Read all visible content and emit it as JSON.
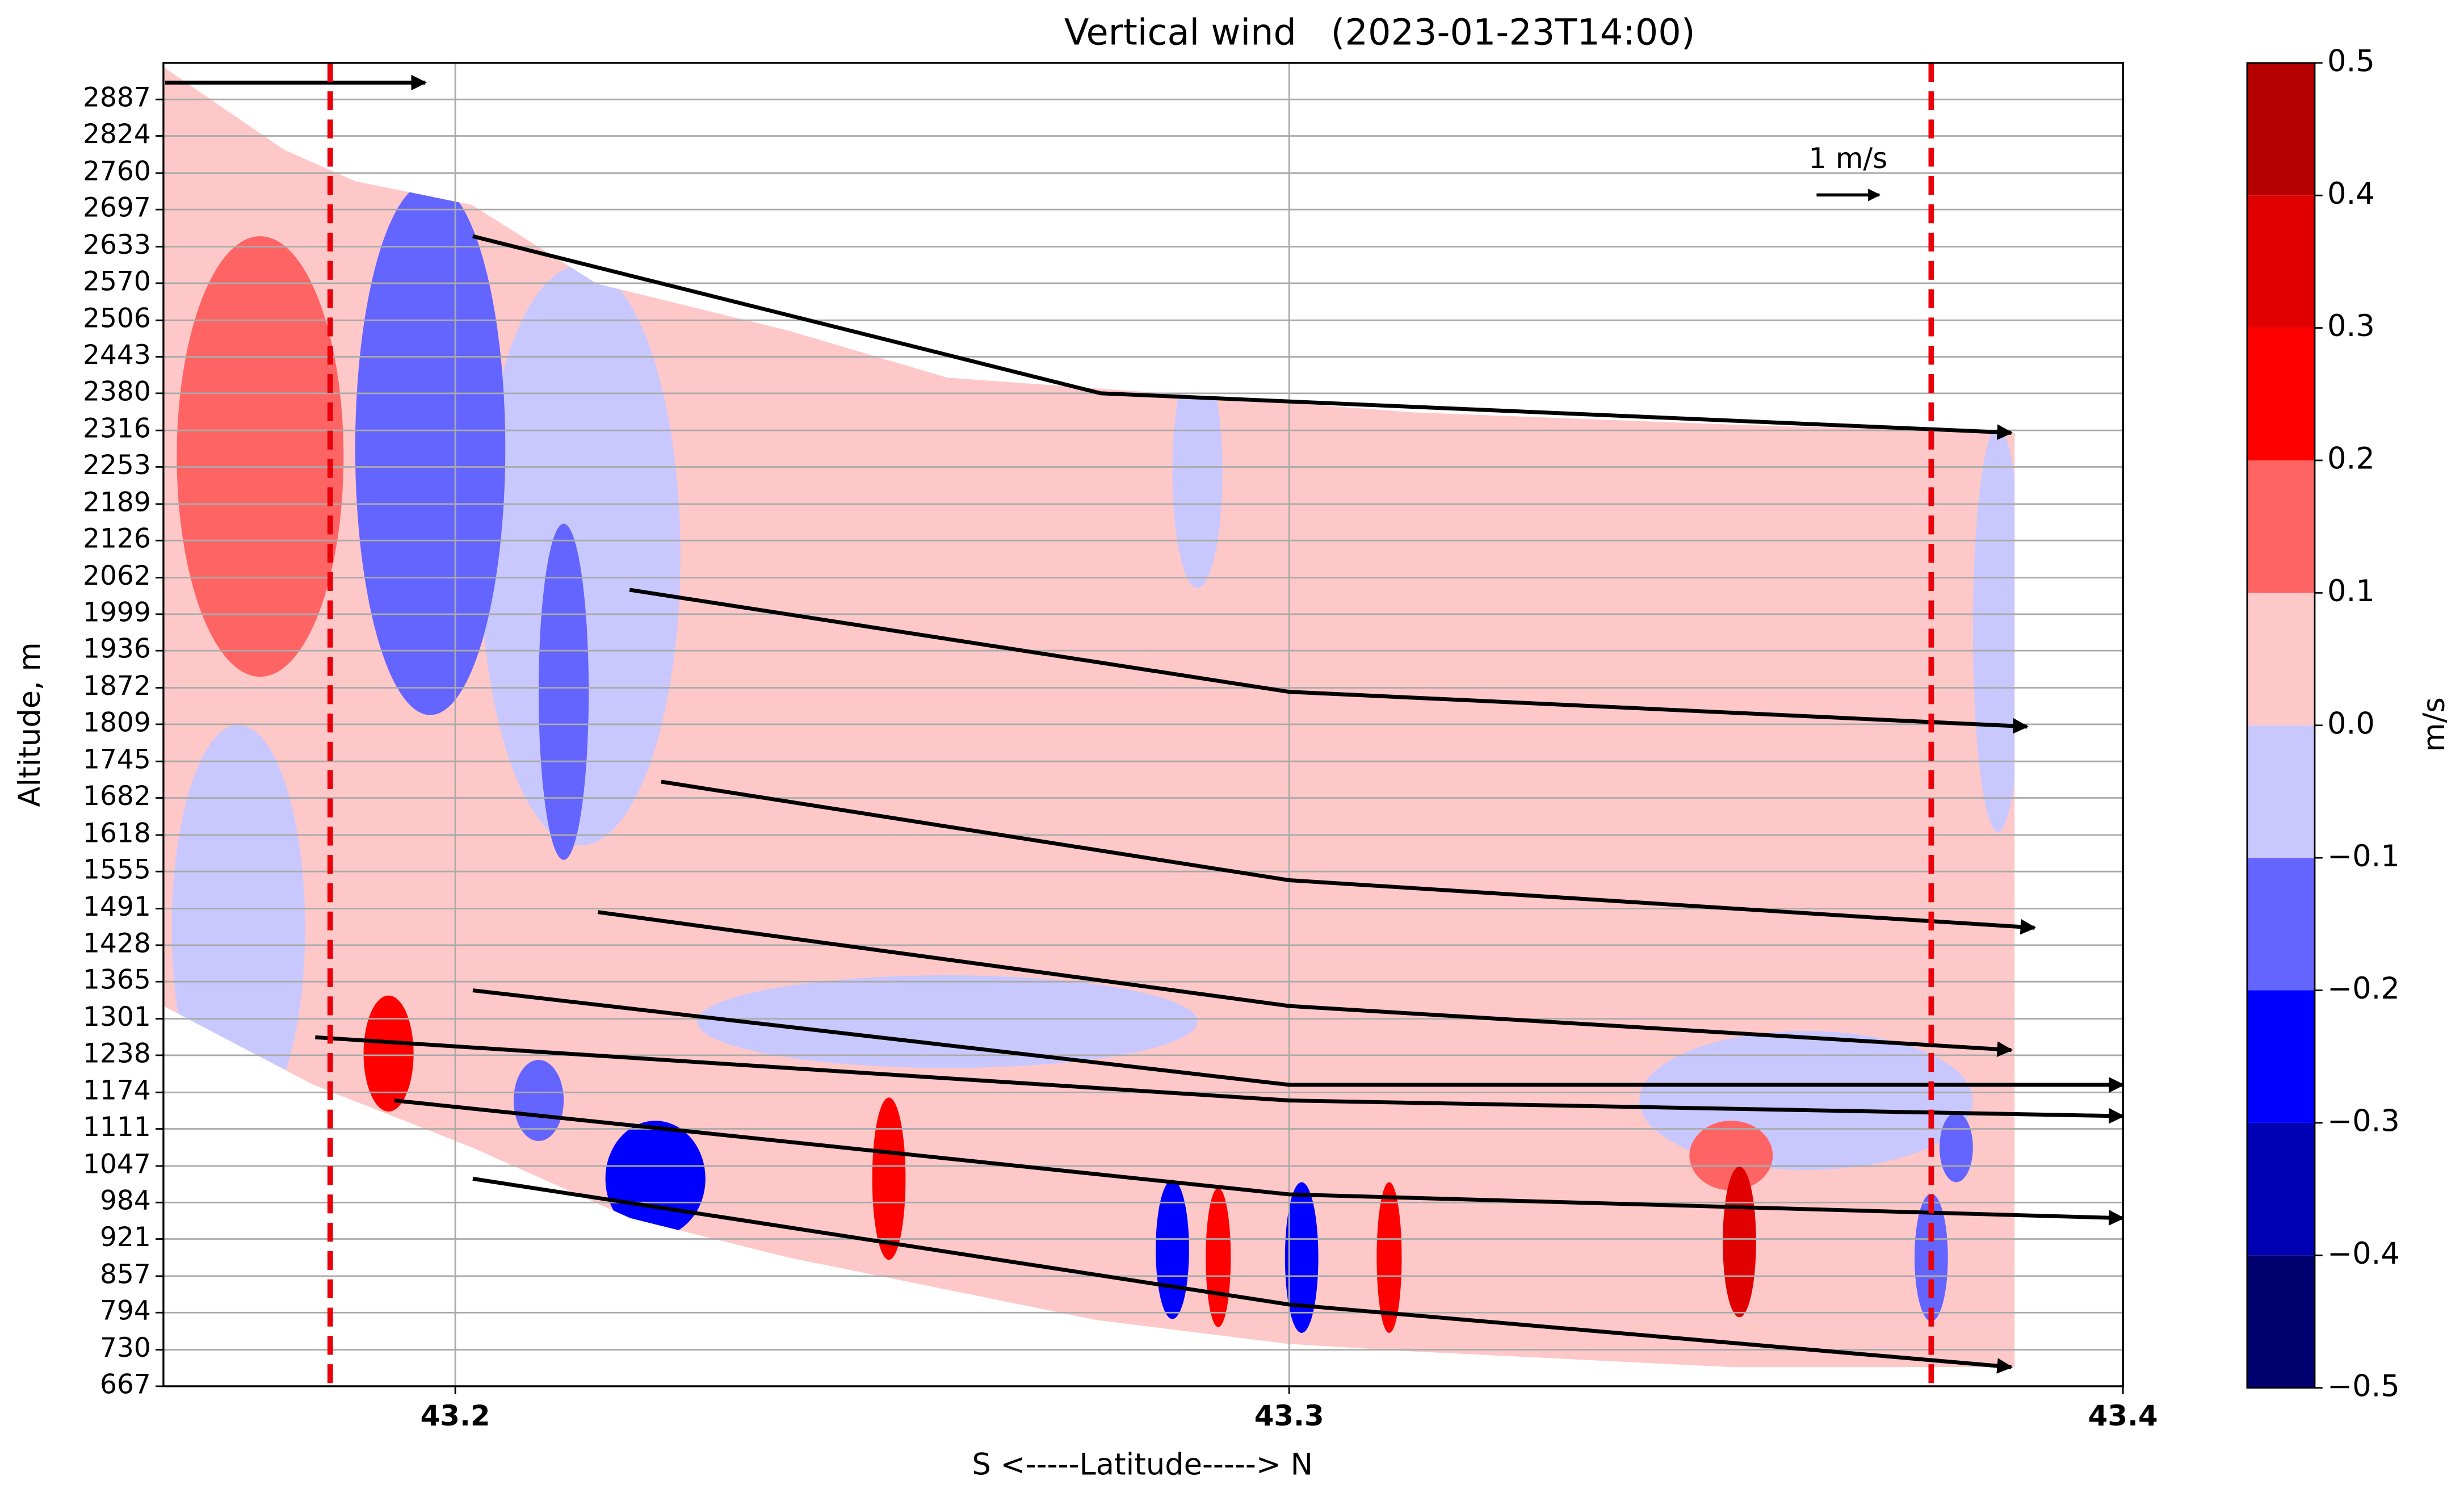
{
  "chart_data": {
    "type": "contour",
    "title": "Vertical wind   (2023-01-23T14:00)",
    "xlabel": "S <-----Latitude-----> N",
    "ylabel": "Altitude, m",
    "xlim": [
      43.165,
      43.4
    ],
    "xticks": [
      43.2,
      43.3,
      43.4
    ],
    "ylim": [
      667,
      2950
    ],
    "yticks": [
      667,
      730,
      794,
      857,
      921,
      984,
      1047,
      1111,
      1174,
      1238,
      1301,
      1365,
      1428,
      1491,
      1555,
      1618,
      1682,
      1745,
      1809,
      1872,
      1936,
      1999,
      2062,
      2126,
      2189,
      2253,
      2316,
      2380,
      2443,
      2506,
      2570,
      2633,
      2697,
      2760,
      2824,
      2887
    ],
    "grid": true,
    "domain": {
      "x": [
        43.165,
        43.1795,
        43.188,
        43.202,
        43.217,
        43.24,
        43.259,
        43.285,
        43.315,
        43.353,
        43.387,
        43.387,
        43.353,
        43.315,
        43.3,
        43.277,
        43.24,
        43.221,
        43.202,
        43.183,
        43.165
      ],
      "y": [
        2943,
        2800,
        2746,
        2705,
        2569,
        2488,
        2407,
        2380,
        2347,
        2326,
        2312,
        700,
        700,
        727,
        740,
        781,
        889,
        957,
        1079,
        1187,
        1323
      ],
      "value": 0.05
    },
    "regions": [
      {
        "lat": 43.174,
        "alt": 1458,
        "dlat": 0.008,
        "dalt": 350,
        "value": -0.05
      },
      {
        "lat": 43.259,
        "alt": 1296,
        "dlat": 0.03,
        "dalt": 80,
        "value": -0.05
      },
      {
        "lat": 43.362,
        "alt": 1160,
        "dlat": 0.02,
        "dalt": 120,
        "value": -0.05
      },
      {
        "lat": 43.289,
        "alt": 2244,
        "dlat": 0.003,
        "dalt": 200,
        "value": -0.05
      },
      {
        "lat": 43.385,
        "alt": 1973,
        "dlat": 0.003,
        "dalt": 350,
        "value": -0.05
      },
      {
        "lat": 43.215,
        "alt": 2100,
        "dlat": 0.012,
        "dalt": 500,
        "value": -0.05
      },
      {
        "lat": 43.1766,
        "alt": 2271,
        "dlat": 0.01,
        "dalt": 380,
        "value": 0.15
      },
      {
        "lat": 43.197,
        "alt": 2285,
        "dlat": 0.009,
        "dalt": 460,
        "value": -0.15
      },
      {
        "lat": 43.213,
        "alt": 1865,
        "dlat": 0.003,
        "dalt": 290,
        "value": -0.15
      },
      {
        "lat": 43.192,
        "alt": 1241,
        "dlat": 0.003,
        "dalt": 100,
        "value": 0.25
      },
      {
        "lat": 43.21,
        "alt": 1160,
        "dlat": 0.003,
        "dalt": 70,
        "value": -0.15
      },
      {
        "lat": 43.224,
        "alt": 1025,
        "dlat": 0.006,
        "dalt": 100,
        "value": -0.25
      },
      {
        "lat": 43.252,
        "alt": 1025,
        "dlat": 0.002,
        "dalt": 140,
        "value": 0.25
      },
      {
        "lat": 43.286,
        "alt": 903,
        "dlat": 0.002,
        "dalt": 120,
        "value": -0.25
      },
      {
        "lat": 43.2915,
        "alt": 889,
        "dlat": 0.0015,
        "dalt": 120,
        "value": 0.25
      },
      {
        "lat": 43.3015,
        "alt": 889,
        "dlat": 0.002,
        "dalt": 130,
        "value": -0.25
      },
      {
        "lat": 43.312,
        "alt": 889,
        "dlat": 0.0015,
        "dalt": 130,
        "value": 0.25
      },
      {
        "lat": 43.353,
        "alt": 1065,
        "dlat": 0.005,
        "dalt": 60,
        "value": 0.15
      },
      {
        "lat": 43.354,
        "alt": 916,
        "dlat": 0.002,
        "dalt": 130,
        "value": 0.35
      },
      {
        "lat": 43.377,
        "alt": 889,
        "dlat": 0.002,
        "dalt": 110,
        "value": -0.15
      },
      {
        "lat": 43.38,
        "alt": 1079,
        "dlat": 0.002,
        "dalt": 60,
        "value": -0.15
      }
    ],
    "streaks": [
      {
        "x": [
          43.1652,
          43.1964
        ],
        "y": [
          2916,
          2916
        ]
      },
      {
        "x": [
          43.2021,
          43.2774,
          43.3866
        ],
        "y": [
          2651,
          2380,
          2312
        ]
      },
      {
        "x": [
          43.2209,
          43.3,
          43.3885
        ],
        "y": [
          2041,
          1865,
          1805
        ]
      },
      {
        "x": [
          43.2247,
          43.3,
          43.3894
        ],
        "y": [
          1710,
          1540,
          1458
        ]
      },
      {
        "x": [
          43.2171,
          43.3,
          43.3866
        ],
        "y": [
          1485,
          1323,
          1247
        ]
      },
      {
        "x": [
          43.2021,
          43.3,
          43.4
        ],
        "y": [
          1350,
          1187,
          1187
        ]
      },
      {
        "x": [
          43.1832,
          43.3,
          43.4
        ],
        "y": [
          1269,
          1160,
          1133
        ]
      },
      {
        "x": [
          43.1927,
          43.3,
          43.4
        ],
        "y": [
          1160,
          998,
          957
        ]
      },
      {
        "x": [
          43.2021,
          43.3,
          43.3866
        ],
        "y": [
          1025,
          808,
          700
        ]
      }
    ],
    "reference_lines": {
      "x": [
        43.185,
        43.377
      ],
      "color": "#e8000b"
    },
    "scale_arrow": {
      "label": "1 m/s",
      "value": 1
    },
    "colorbar": {
      "label": "m/s",
      "levels": [
        -0.5,
        -0.4,
        -0.3,
        -0.2,
        -0.1,
        0,
        0.1,
        0.2,
        0.3,
        0.4,
        0.5
      ],
      "colors": [
        "#00006e",
        "#0000b4",
        "#0000ff",
        "#6464ff",
        "#c8c8ff",
        "#ffc8c8",
        "#ff6464",
        "#ff0000",
        "#e00000",
        "#b40000"
      ],
      "ticks": [
        {
          "value": -0.5,
          "label": "−0.5"
        },
        {
          "value": -0.4,
          "label": "−0.4"
        },
        {
          "value": -0.3,
          "label": "−0.3"
        },
        {
          "value": -0.2,
          "label": "−0.2"
        },
        {
          "value": -0.1,
          "label": "−0.1"
        },
        {
          "value": 0,
          "label": "0.0"
        },
        0.1,
        0.2,
        0.3,
        0.4,
        0.5
      ]
    }
  }
}
